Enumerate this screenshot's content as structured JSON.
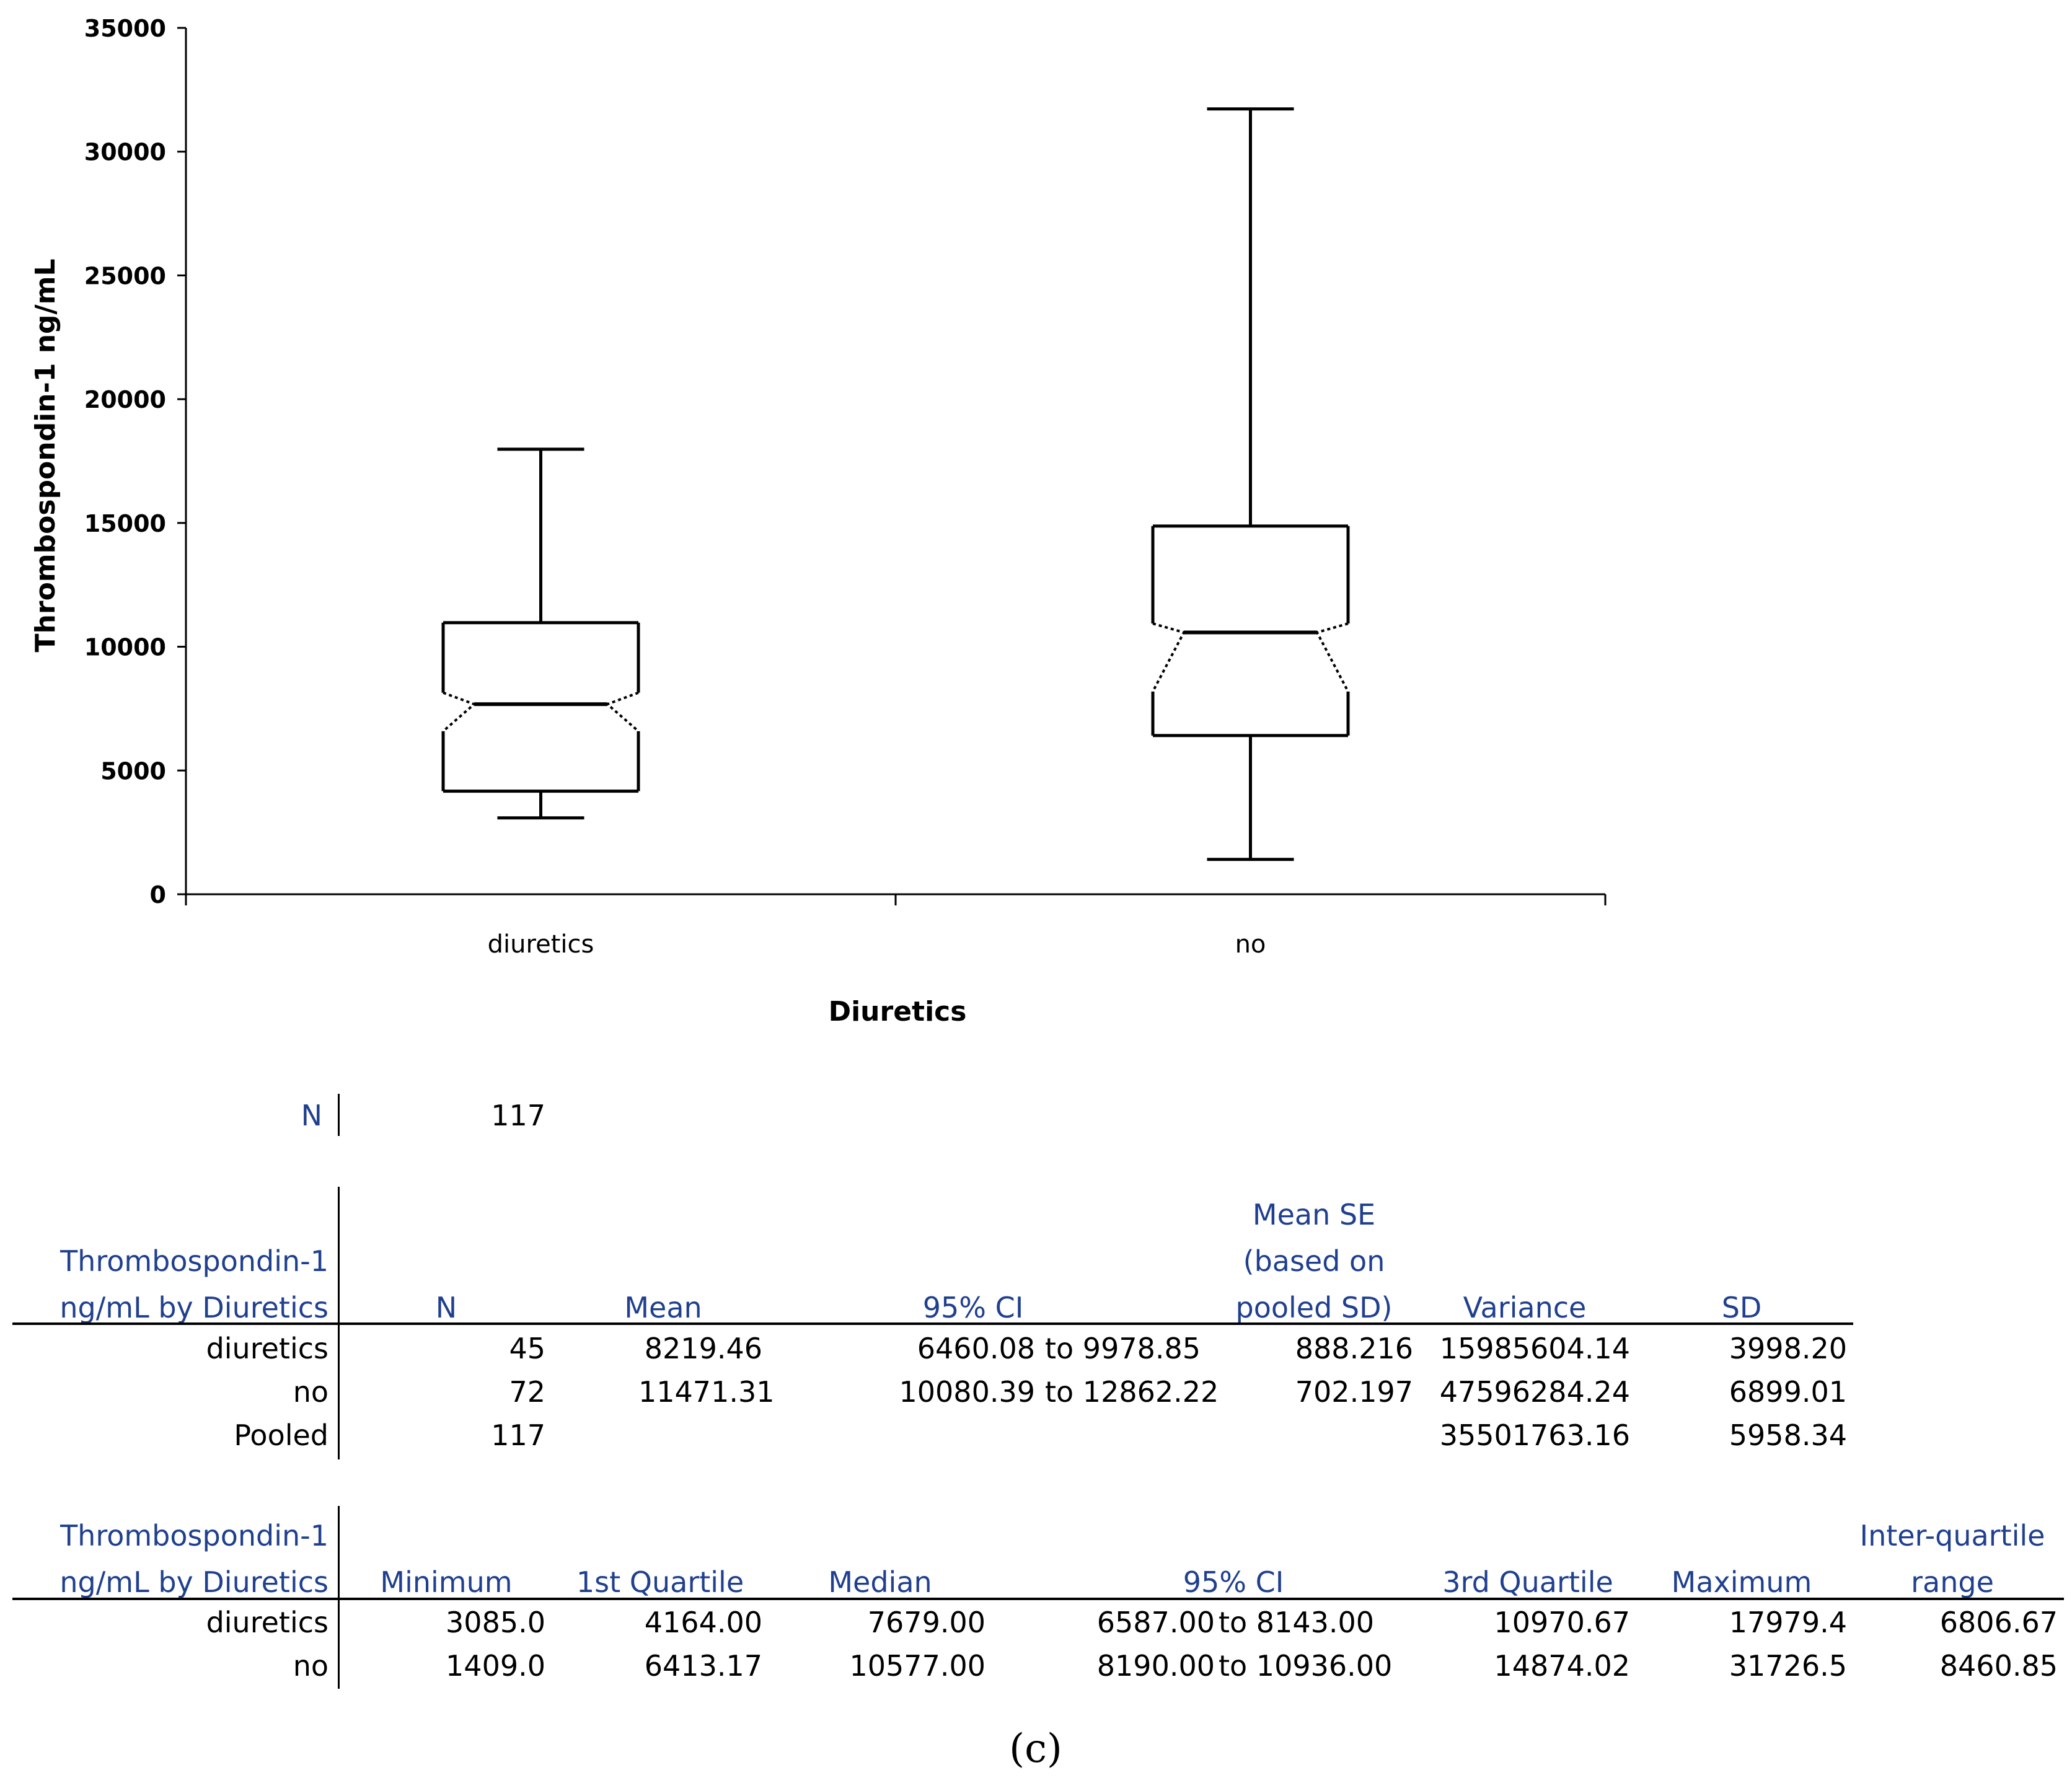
{
  "chart_data": {
    "type": "box",
    "title": "",
    "xlabel": "Diuretics",
    "ylabel": "Thrombospondin-1  ng/mL",
    "ylim": [
      0,
      35000
    ],
    "yticks": [
      0,
      5000,
      10000,
      15000,
      20000,
      25000,
      30000,
      35000
    ],
    "categories": [
      "diuretics",
      "no"
    ],
    "boxes": [
      {
        "name": "diuretics",
        "min": 3085.0,
        "q1": 4164.0,
        "median": 7679.0,
        "q3": 10970.67,
        "max": 17979.4,
        "notch_low": 6587.0,
        "notch_high": 8143.0
      },
      {
        "name": "no",
        "min": 1409.0,
        "q1": 6413.17,
        "median": 10577.0,
        "q3": 14874.02,
        "max": 31726.5,
        "notch_low": 8190.0,
        "notch_high": 10936.0
      }
    ]
  },
  "summary": {
    "n_label": "N",
    "n_value": "117"
  },
  "table1": {
    "headers": [
      "Thrombospondin-1\nng/mL by Diuretics",
      "N",
      "Mean",
      "95% CI",
      "Mean SE\n(based on\npooled SD)",
      "Variance",
      "SD"
    ],
    "rows": [
      [
        "diuretics",
        "45",
        "8219.46",
        "6460.08",
        "to 9978.85",
        "888.216",
        "15985604.14",
        "3998.20"
      ],
      [
        "no",
        "72",
        "11471.31",
        "10080.39",
        "to 12862.22",
        "702.197",
        "47596284.24",
        "6899.01"
      ],
      [
        "Pooled",
        "117",
        "",
        "",
        "",
        "",
        "35501763.16",
        "5958.34"
      ]
    ]
  },
  "table2": {
    "headers": [
      "Thrombospondin-1\nng/mL by Diuretics",
      "Minimum",
      "1st Quartile",
      "Median",
      "95% CI",
      "3rd Quartile",
      "Maximum",
      "Inter-quartile\nrange"
    ],
    "rows": [
      [
        "diuretics",
        "3085.0",
        "4164.00",
        "7679.00",
        "6587.00",
        "to 8143.00",
        "10970.67",
        "17979.4",
        "6806.67"
      ],
      [
        "no",
        "1409.0",
        "6413.17",
        "10577.00",
        "8190.00",
        "to 10936.00",
        "14874.02",
        "31726.5",
        "8460.85"
      ]
    ]
  },
  "caption": "(c)"
}
